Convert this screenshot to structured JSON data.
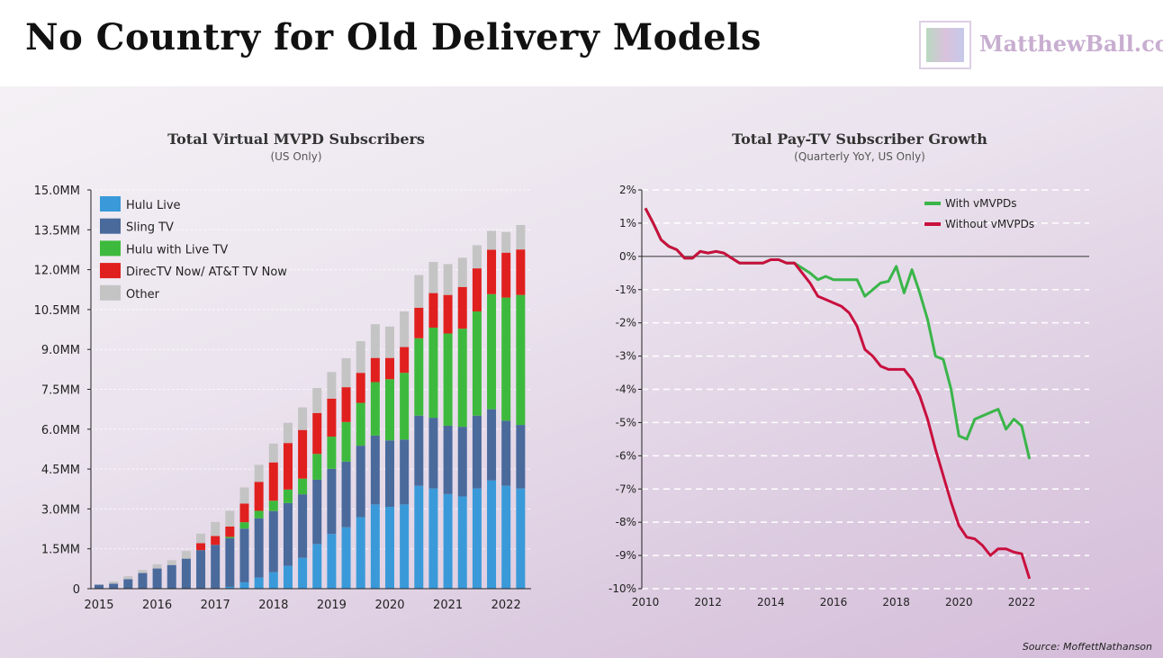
{
  "header": {
    "title": "No Country for Old Delivery Models",
    "logo_text": "MatthewBall.co"
  },
  "source": "Source: MoffettNathanson",
  "colors": {
    "hulu_live": "#3a9ad9",
    "sling": "#4a6a9c",
    "hulu_with_live": "#3dba3d",
    "directv": "#e0201e",
    "other": "#c4c4c4",
    "with": "#3ab54a",
    "without": "#c8103e"
  },
  "chart_data": [
    {
      "type": "bar",
      "stacked": true,
      "title": "Total Virtual MVPD Subscribers",
      "subtitle": "(US Only)",
      "xlabel": "",
      "ylabel": "",
      "ylim": [
        0,
        15
      ],
      "y_ticks": [
        "0",
        "1.5MM",
        "3.0MM",
        "4.5MM",
        "6.0MM",
        "7.5MM",
        "9.0MM",
        "10.5MM",
        "12.0MM",
        "13.5MM",
        "15.0MM"
      ],
      "x_ticks": [
        "2015",
        "2016",
        "2017",
        "2018",
        "2019",
        "2020",
        "2021",
        "2022"
      ],
      "categories": [
        "Q1'15",
        "Q2'15",
        "Q3'15",
        "Q4'15",
        "Q1'16",
        "Q2'16",
        "Q3'16",
        "Q4'16",
        "Q1'17",
        "Q2'17",
        "Q3'17",
        "Q4'17",
        "Q1'18",
        "Q2'18",
        "Q3'18",
        "Q4'18",
        "Q1'19",
        "Q2'19",
        "Q3'19",
        "Q4'19",
        "Q1'20",
        "Q2'20",
        "Q3'20",
        "Q4'20",
        "Q1'21",
        "Q2'21",
        "Q3'21",
        "Q4'21",
        "Q1'22",
        "Q2'22"
      ],
      "legend": "top-left",
      "series": [
        {
          "name": "Hulu Live",
          "values": [
            0,
            0,
            0,
            0,
            0,
            0,
            0,
            0,
            0,
            0.07,
            0.24,
            0.42,
            0.62,
            0.86,
            1.16,
            1.68,
            2.06,
            2.31,
            2.69,
            3.17,
            3.08,
            3.17,
            3.87,
            3.77,
            3.56,
            3.47,
            3.77,
            4.07,
            3.87,
            3.77
          ]
        },
        {
          "name": "Sling TV",
          "values": [
            0.15,
            0.19,
            0.36,
            0.59,
            0.76,
            0.89,
            1.13,
            1.45,
            1.65,
            1.83,
            2.02,
            2.23,
            2.3,
            2.36,
            2.39,
            2.42,
            2.45,
            2.47,
            2.69,
            2.59,
            2.5,
            2.44,
            2.64,
            2.66,
            2.57,
            2.62,
            2.74,
            2.68,
            2.45,
            2.39
          ]
        },
        {
          "name": "Hulu with Live TV",
          "values": [
            0,
            0,
            0,
            0,
            0,
            0,
            0,
            0,
            0,
            0.05,
            0.24,
            0.28,
            0.39,
            0.51,
            0.59,
            0.97,
            1.21,
            1.49,
            1.61,
            2.01,
            2.3,
            2.51,
            2.91,
            3.39,
            3.47,
            3.69,
            3.92,
            4.33,
            4.63,
            4.89
          ]
        },
        {
          "name": "DirecTV Now/ AT&T TV Now",
          "values": [
            0,
            0,
            0,
            0,
            0,
            0,
            0,
            0.26,
            0.33,
            0.39,
            0.7,
            1.09,
            1.44,
            1.75,
            1.83,
            1.54,
            1.43,
            1.31,
            1.13,
            0.91,
            0.8,
            0.97,
            1.15,
            1.3,
            1.45,
            1.57,
            1.62,
            1.67,
            1.69,
            1.71
          ]
        },
        {
          "name": "Other",
          "values": [
            0,
            0.08,
            0.11,
            0.11,
            0.16,
            0.18,
            0.29,
            0.36,
            0.53,
            0.59,
            0.61,
            0.64,
            0.71,
            0.76,
            0.85,
            0.94,
            1.0,
            1.09,
            1.19,
            1.27,
            1.18,
            1.34,
            1.23,
            1.17,
            1.16,
            1.1,
            0.87,
            0.71,
            0.78,
            0.92
          ]
        }
      ]
    },
    {
      "type": "line",
      "title": "Total Pay-TV Subscriber Growth",
      "subtitle": "(Quarterly YoY, US Only)",
      "xlabel": "",
      "ylabel": "",
      "xlim": [
        2010,
        2022.25
      ],
      "ylim": [
        -10,
        2
      ],
      "y_ticks": [
        "2%",
        "1%",
        "0%",
        "-1%",
        "-2%",
        "-3%",
        "-4%",
        "-5%",
        "-6%",
        "-7%",
        "-8%",
        "-9%",
        "-10%"
      ],
      "x_ticks": [
        "2010",
        "2012",
        "2014",
        "2016",
        "2018",
        "2020",
        "2022"
      ],
      "grid": "dashed horizontal",
      "legend": "top-right",
      "x_start": 2010,
      "x_step": 0.25,
      "series": [
        {
          "name": "With vMVPDs",
          "values": [
            1.45,
            1.0,
            0.5,
            0.3,
            0.2,
            -0.05,
            -0.05,
            0.15,
            0.1,
            0.15,
            0.1,
            -0.05,
            -0.2,
            -0.2,
            -0.2,
            -0.2,
            -0.1,
            -0.1,
            -0.2,
            -0.2,
            -0.35,
            -0.5,
            -0.7,
            -0.6,
            -0.7,
            -0.7,
            -0.7,
            -0.7,
            -1.2,
            -1.0,
            -0.8,
            -0.75,
            -0.3,
            -1.1,
            -0.4,
            -1.1,
            -1.9,
            -3.0,
            -3.1,
            -4.0,
            -5.4,
            -5.5,
            -4.9,
            -4.8,
            -4.7,
            -4.6,
            -5.2,
            -4.9,
            -5.1,
            -6.1
          ]
        },
        {
          "name": "Without vMVPDs",
          "values": [
            1.45,
            1.0,
            0.5,
            0.3,
            0.2,
            -0.05,
            -0.05,
            0.15,
            0.1,
            0.15,
            0.1,
            -0.05,
            -0.2,
            -0.2,
            -0.2,
            -0.2,
            -0.1,
            -0.1,
            -0.2,
            -0.2,
            -0.5,
            -0.8,
            -1.2,
            -1.3,
            -1.4,
            -1.5,
            -1.7,
            -2.1,
            -2.8,
            -3.0,
            -3.3,
            -3.4,
            -3.4,
            -3.4,
            -3.7,
            -4.2,
            -4.9,
            -5.8,
            -6.6,
            -7.4,
            -8.1,
            -8.45,
            -8.5,
            -8.7,
            -9.0,
            -8.8,
            -8.8,
            -8.9,
            -8.95,
            -9.7
          ]
        }
      ]
    }
  ]
}
